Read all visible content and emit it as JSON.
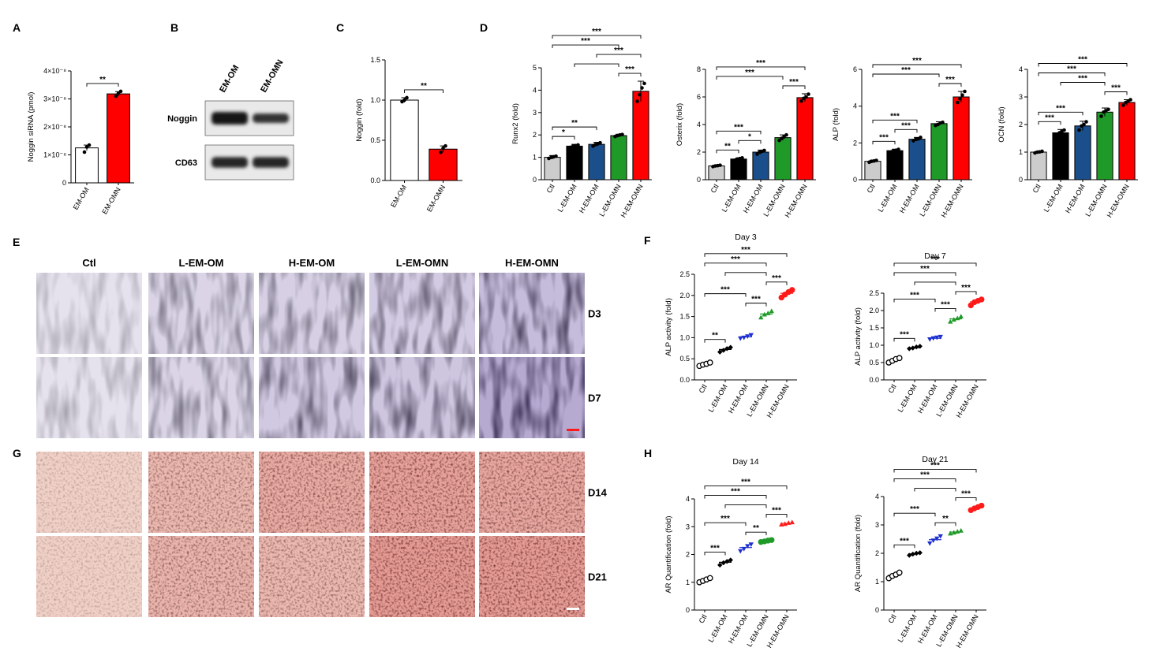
{
  "panel_labels": [
    "A",
    "B",
    "C",
    "D",
    "E",
    "F",
    "G",
    "H"
  ],
  "chart_data": [
    {
      "id": "A",
      "type": "bar",
      "title": "",
      "xlabel": "",
      "ylabel": "Noggin siRNA (pmol)",
      "categories": [
        "EM-OM",
        "EM-OMN"
      ],
      "values": [
        1.25e-08,
        3.18e-08
      ],
      "errors": [
        1e-09,
        8e-10
      ],
      "points": [
        [
          1.1e-08,
          1.28e-08,
          1.35e-08
        ],
        [
          3.1e-08,
          3.2e-08,
          3.27e-08
        ]
      ],
      "colors": [
        "#ffffff",
        "#ff0000"
      ],
      "ylim": [
        0,
        4e-08
      ],
      "yticks": [
        0,
        1e-08,
        2e-08,
        3e-08,
        4e-08
      ],
      "yticklabels": [
        "0",
        "1×10⁻⁸",
        "2×10⁻⁸",
        "3×10⁻⁸",
        "4×10⁻⁸"
      ],
      "annotations": [
        {
          "from": 0,
          "to": 1,
          "label": "**"
        }
      ]
    },
    {
      "id": "C",
      "type": "bar",
      "title": "",
      "xlabel": "",
      "ylabel": "Noggin (fold)",
      "categories": [
        "EM-OM",
        "EM-OMN"
      ],
      "values": [
        1.0,
        0.39
      ],
      "errors": [
        0.03,
        0.04
      ],
      "points": [
        [
          0.98,
          1.0,
          1.03
        ],
        [
          0.35,
          0.4,
          0.43
        ]
      ],
      "colors": [
        "#ffffff",
        "#ff0000"
      ],
      "ylim": [
        0,
        1.5
      ],
      "yticks": [
        0,
        0.5,
        1.0,
        1.5
      ],
      "yticklabels": [
        "0.0",
        "0.5",
        "1.0",
        "1.5"
      ],
      "annotations": [
        {
          "from": 0,
          "to": 1,
          "label": "**"
        }
      ]
    },
    {
      "id": "D1",
      "type": "bar",
      "title": "",
      "xlabel": "",
      "ylabel": "Runx2 (fold)",
      "categories": [
        "Ctl",
        "L-EM-OM",
        "H-EM-OM",
        "L-EM-OMN",
        "H-EM-OMN"
      ],
      "values": [
        1.0,
        1.5,
        1.58,
        1.97,
        3.95
      ],
      "errors": [
        0.08,
        0.08,
        0.09,
        0.06,
        0.45
      ],
      "points": [
        [
          0.95,
          1.0,
          1.02,
          1.05
        ],
        [
          1.45,
          1.5,
          1.52,
          1.55
        ],
        [
          1.5,
          1.57,
          1.6,
          1.65
        ],
        [
          1.93,
          1.97,
          2.0,
          2.02
        ],
        [
          3.5,
          3.8,
          4.1,
          4.3
        ]
      ],
      "colors": [
        "#cccccc",
        "#000000",
        "#1a4f8c",
        "#1f9a28",
        "#ff0000"
      ],
      "ylim": [
        0,
        5
      ],
      "yticks": [
        0,
        1,
        2,
        3,
        4,
        5
      ],
      "yticklabels": [
        "0",
        "1",
        "2",
        "3",
        "4",
        "5"
      ],
      "annotations": [
        {
          "from": 0,
          "to": 1,
          "label": "*"
        },
        {
          "from": 0,
          "to": 2,
          "label": "**"
        },
        {
          "from": 0,
          "to": 3,
          "label": "***"
        },
        {
          "from": 1,
          "to": 3,
          "label": ""
        },
        {
          "from": 3,
          "to": 4,
          "label": "***"
        },
        {
          "from": 2,
          "to": 4,
          "label": "***"
        },
        {
          "from": 0,
          "to": 4,
          "label": "***"
        }
      ]
    },
    {
      "id": "D2",
      "type": "bar",
      "title": "",
      "xlabel": "",
      "ylabel": "Osterix (fold)",
      "categories": [
        "Ctl",
        "L-EM-OM",
        "H-EM-OM",
        "L-EM-OMN",
        "H-EM-OMN"
      ],
      "values": [
        1.0,
        1.5,
        2.0,
        3.05,
        5.95
      ],
      "errors": [
        0.06,
        0.08,
        0.15,
        0.2,
        0.28
      ],
      "points": [
        [
          0.95,
          1.0,
          1.02,
          1.05
        ],
        [
          1.42,
          1.5,
          1.53,
          1.58
        ],
        [
          1.85,
          2.0,
          2.05,
          2.12
        ],
        [
          2.85,
          3.0,
          3.1,
          3.25
        ],
        [
          5.7,
          5.9,
          6.0,
          6.2
        ]
      ],
      "colors": [
        "#cccccc",
        "#000000",
        "#1a4f8c",
        "#1f9a28",
        "#ff0000"
      ],
      "ylim": [
        0,
        8
      ],
      "yticks": [
        0,
        2,
        4,
        6,
        8
      ],
      "yticklabels": [
        "0",
        "2",
        "4",
        "6",
        "8"
      ],
      "annotations": [
        {
          "from": 0,
          "to": 1,
          "label": "**"
        },
        {
          "from": 1,
          "to": 2,
          "label": "*"
        },
        {
          "from": 0,
          "to": 2,
          "label": "***"
        },
        {
          "from": 0,
          "to": 3,
          "label": "***"
        },
        {
          "from": 3,
          "to": 4,
          "label": "***"
        },
        {
          "from": 0,
          "to": 4,
          "label": "***"
        }
      ]
    },
    {
      "id": "D3",
      "type": "bar",
      "title": "",
      "xlabel": "",
      "ylabel": "ALP (fold)",
      "categories": [
        "Ctl",
        "L-EM-OM",
        "H-EM-OM",
        "L-EM-OMN",
        "H-EM-OMN"
      ],
      "values": [
        1.0,
        1.58,
        2.2,
        3.05,
        4.5
      ],
      "errors": [
        0.06,
        0.08,
        0.1,
        0.1,
        0.3
      ],
      "points": [
        [
          0.95,
          1.0,
          1.02,
          1.05
        ],
        [
          1.52,
          1.58,
          1.6,
          1.65
        ],
        [
          2.12,
          2.2,
          2.22,
          2.3
        ],
        [
          2.95,
          3.0,
          3.08,
          3.12
        ],
        [
          4.2,
          4.4,
          4.6,
          4.8
        ]
      ],
      "colors": [
        "#cccccc",
        "#000000",
        "#1a4f8c",
        "#1f9a28",
        "#ff0000"
      ],
      "ylim": [
        0,
        6
      ],
      "yticks": [
        0,
        2,
        4,
        6
      ],
      "yticklabels": [
        "0",
        "2",
        "4",
        "6"
      ],
      "annotations": [
        {
          "from": 0,
          "to": 1,
          "label": "***"
        },
        {
          "from": 1,
          "to": 2,
          "label": "***"
        },
        {
          "from": 0,
          "to": 2,
          "label": "***"
        },
        {
          "from": 0,
          "to": 3,
          "label": "***"
        },
        {
          "from": 3,
          "to": 4,
          "label": "***"
        },
        {
          "from": 0,
          "to": 4,
          "label": "***"
        }
      ]
    },
    {
      "id": "D4",
      "type": "bar",
      "title": "",
      "xlabel": "",
      "ylabel": "OCN (fold)",
      "categories": [
        "Ctl",
        "L-EM-OM",
        "H-EM-OM",
        "L-EM-OMN",
        "H-EM-OMN"
      ],
      "values": [
        1.0,
        1.7,
        1.95,
        2.45,
        2.8
      ],
      "errors": [
        0.03,
        0.12,
        0.17,
        0.15,
        0.1
      ],
      "points": [
        [
          0.97,
          1.0,
          1.01,
          1.03
        ],
        [
          1.55,
          1.7,
          1.75,
          1.8
        ],
        [
          1.8,
          1.95,
          2.0,
          2.1
        ],
        [
          2.3,
          2.45,
          2.5,
          2.55
        ],
        [
          2.7,
          2.8,
          2.85,
          2.9
        ]
      ],
      "colors": [
        "#cccccc",
        "#000000",
        "#1a4f8c",
        "#1f9a28",
        "#ff0000"
      ],
      "ylim": [
        0,
        4
      ],
      "yticks": [
        0,
        1,
        2,
        3,
        4
      ],
      "yticklabels": [
        "0",
        "1",
        "2",
        "3",
        "4"
      ],
      "annotations": [
        {
          "from": 0,
          "to": 1,
          "label": "***"
        },
        {
          "from": 0,
          "to": 2,
          "label": "***"
        },
        {
          "from": 1,
          "to": 3,
          "label": "***"
        },
        {
          "from": 0,
          "to": 3,
          "label": "***"
        },
        {
          "from": 3,
          "to": 4,
          "label": "***"
        },
        {
          "from": 0,
          "to": 4,
          "label": "***"
        }
      ]
    },
    {
      "id": "F1",
      "type": "scatter",
      "title": "Day 3",
      "xlabel": "",
      "ylabel": "ALP activity (fold)",
      "categories": [
        "Ctl",
        "L-EM-OM",
        "H-EM-OM",
        "L-EM-OMN",
        "H-EM-OMN"
      ],
      "values": [
        0.37,
        0.72,
        1.02,
        1.56,
        2.05
      ],
      "points": [
        [
          0.33,
          0.36,
          0.38,
          0.41
        ],
        [
          0.66,
          0.7,
          0.74,
          0.77
        ],
        [
          0.98,
          1.0,
          1.03,
          1.06
        ],
        [
          1.48,
          1.55,
          1.58,
          1.63
        ],
        [
          1.95,
          2.02,
          2.08,
          2.13
        ]
      ],
      "colors": [
        "#000000",
        "#000000",
        "#1f30d0",
        "#1f9a28",
        "#ff1a1a"
      ],
      "markers": [
        "circle",
        "diamond",
        "triangle-down",
        "triangle-up",
        "circle-filled"
      ],
      "ylim": [
        0,
        2.5
      ],
      "yticks": [
        0,
        0.5,
        1.0,
        1.5,
        2.0,
        2.5
      ],
      "yticklabels": [
        "0.0",
        "0.5",
        "1.0",
        "1.5",
        "2.0",
        "2.5"
      ],
      "annotations": [
        {
          "from": 0,
          "to": 1,
          "label": "**"
        },
        {
          "from": 0,
          "to": 2,
          "label": "***"
        },
        {
          "from": 1,
          "to": 3,
          "label": ""
        },
        {
          "from": 2,
          "to": 3,
          "label": "***"
        },
        {
          "from": 3,
          "to": 4,
          "label": "***"
        },
        {
          "from": 0,
          "to": 3,
          "label": "***"
        },
        {
          "from": 0,
          "to": 4,
          "label": "***"
        }
      ]
    },
    {
      "id": "F2",
      "type": "scatter",
      "title": "Day 7",
      "xlabel": "",
      "ylabel": "ALP activity (fold)",
      "categories": [
        "Ctl",
        "L-EM-OM",
        "H-EM-OM",
        "L-EM-OMN",
        "H-EM-OMN"
      ],
      "values": [
        0.57,
        0.93,
        1.2,
        1.76,
        2.25
      ],
      "points": [
        [
          0.5,
          0.55,
          0.6,
          0.63
        ],
        [
          0.9,
          0.92,
          0.95,
          0.97
        ],
        [
          1.17,
          1.2,
          1.22,
          1.24
        ],
        [
          1.68,
          1.74,
          1.78,
          1.83
        ],
        [
          2.15,
          2.24,
          2.28,
          2.32
        ]
      ],
      "colors": [
        "#000000",
        "#000000",
        "#1f30d0",
        "#1f9a28",
        "#ff1a1a"
      ],
      "markers": [
        "circle",
        "diamond",
        "triangle-down",
        "triangle-up",
        "circle-filled"
      ],
      "ylim": [
        0,
        2.5
      ],
      "yticks": [
        0,
        0.5,
        1.0,
        1.5,
        2.0,
        2.5
      ],
      "yticklabels": [
        "0.0",
        "0.5",
        "1.0",
        "1.5",
        "2.0",
        "2.5"
      ],
      "annotations": [
        {
          "from": 0,
          "to": 1,
          "label": "***"
        },
        {
          "from": 0,
          "to": 2,
          "label": "***"
        },
        {
          "from": 1,
          "to": 3,
          "label": ""
        },
        {
          "from": 2,
          "to": 3,
          "label": "***"
        },
        {
          "from": 3,
          "to": 4,
          "label": "***"
        },
        {
          "from": 0,
          "to": 3,
          "label": "***"
        },
        {
          "from": 0,
          "to": 4,
          "label": "***"
        }
      ]
    },
    {
      "id": "H1",
      "type": "scatter",
      "title": "Day 14",
      "xlabel": "",
      "ylabel": "AR Quantification (fold)",
      "categories": [
        "Ctl",
        "L-EM-OM",
        "H-EM-OM",
        "L-EM-OMN",
        "H-EM-OMN"
      ],
      "values": [
        1.08,
        1.72,
        2.25,
        2.48,
        3.12
      ],
      "points": [
        [
          1.0,
          1.05,
          1.1,
          1.15
        ],
        [
          1.62,
          1.7,
          1.75,
          1.8
        ],
        [
          2.12,
          2.2,
          2.3,
          2.36
        ],
        [
          2.45,
          2.47,
          2.5,
          2.52
        ],
        [
          3.08,
          3.1,
          3.14,
          3.16
        ]
      ],
      "colors": [
        "#000000",
        "#000000",
        "#1f30d0",
        "#1f9a28",
        "#ff1a1a"
      ],
      "markers": [
        "circle",
        "diamond",
        "triangle-down",
        "circle-filled",
        "triangle-up"
      ],
      "ylim": [
        0,
        4
      ],
      "yticks": [
        0,
        1,
        2,
        3,
        4
      ],
      "yticklabels": [
        "0",
        "1",
        "2",
        "3",
        "4"
      ],
      "annotations": [
        {
          "from": 0,
          "to": 1,
          "label": "***"
        },
        {
          "from": 0,
          "to": 2,
          "label": "***"
        },
        {
          "from": 1,
          "to": 3,
          "label": ""
        },
        {
          "from": 2,
          "to": 3,
          "label": "**"
        },
        {
          "from": 3,
          "to": 4,
          "label": "***"
        },
        {
          "from": 0,
          "to": 3,
          "label": "***"
        },
        {
          "from": 0,
          "to": 4,
          "label": "***"
        }
      ]
    },
    {
      "id": "H2",
      "type": "scatter",
      "title": "Day 21",
      "xlabel": "",
      "ylabel": "AR Quantification (fold)",
      "categories": [
        "Ctl",
        "L-EM-OM",
        "H-EM-OM",
        "L-EM-OMN",
        "H-EM-OMN"
      ],
      "values": [
        1.22,
        1.98,
        2.48,
        2.75,
        3.6
      ],
      "points": [
        [
          1.12,
          1.2,
          1.25,
          1.32
        ],
        [
          1.93,
          1.97,
          2.0,
          2.02
        ],
        [
          2.35,
          2.45,
          2.52,
          2.6
        ],
        [
          2.7,
          2.73,
          2.77,
          2.8
        ],
        [
          3.52,
          3.58,
          3.63,
          3.68
        ]
      ],
      "colors": [
        "#000000",
        "#000000",
        "#1f30d0",
        "#1f9a28",
        "#ff1a1a"
      ],
      "markers": [
        "circle",
        "diamond",
        "triangle-down",
        "triangle-up",
        "circle-filled"
      ],
      "ylim": [
        0,
        4
      ],
      "yticks": [
        0,
        1,
        2,
        3,
        4
      ],
      "yticklabels": [
        "0",
        "1",
        "2",
        "3",
        "4"
      ],
      "annotations": [
        {
          "from": 0,
          "to": 1,
          "label": "***"
        },
        {
          "from": 0,
          "to": 2,
          "label": "***"
        },
        {
          "from": 1,
          "to": 3,
          "label": ""
        },
        {
          "from": 2,
          "to": 3,
          "label": "**"
        },
        {
          "from": 3,
          "to": 4,
          "label": "***"
        },
        {
          "from": 0,
          "to": 3,
          "label": "***"
        },
        {
          "from": 0,
          "to": 4,
          "label": "***"
        }
      ]
    }
  ],
  "western_blot": {
    "lanes": [
      "EM-OM",
      "EM-OMN"
    ],
    "rows": [
      {
        "label": "Noggin",
        "intensity": [
          1.0,
          0.6
        ]
      },
      {
        "label": "CD63",
        "intensity": [
          0.75,
          0.75
        ]
      }
    ]
  },
  "micrographs": {
    "columns": [
      "Ctl",
      "L-EM-OM",
      "H-EM-OM",
      "L-EM-OMN",
      "H-EM-OMN"
    ],
    "alp_rows": [
      {
        "label": "D3",
        "stain_density": [
          0.15,
          0.5,
          0.55,
          0.6,
          0.8
        ]
      },
      {
        "label": "D7",
        "stain_density": [
          0.2,
          0.5,
          0.65,
          0.7,
          0.95
        ]
      }
    ],
    "ar_rows": [
      {
        "label": "D14",
        "stain_density": [
          0.2,
          0.6,
          0.75,
          0.85,
          0.8
        ]
      },
      {
        "label": "D21",
        "stain_density": [
          0.2,
          0.65,
          0.6,
          0.9,
          0.9
        ]
      }
    ],
    "alp_color": "#5b3f9a",
    "ar_color": "#c81e1e",
    "scale_bar_colors": [
      "#ff1a1a",
      "#ffffff"
    ]
  }
}
